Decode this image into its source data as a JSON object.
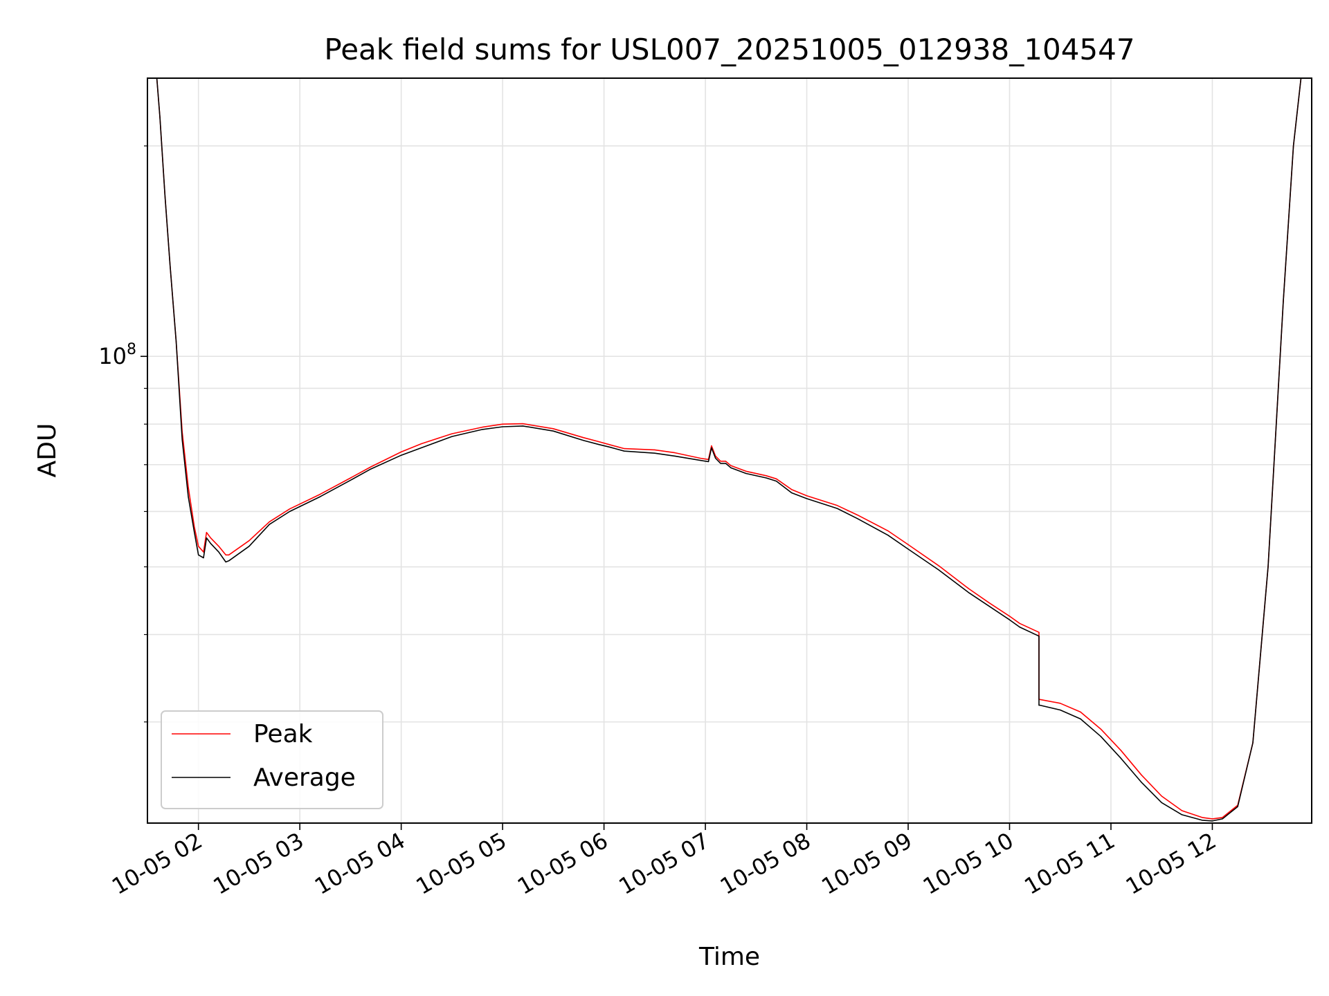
{
  "chart_data": {
    "type": "line",
    "title": "Peak field sums for USL007_20251005_012938_104547",
    "xlabel": "Time",
    "ylabel": "ADU",
    "yscale": "log",
    "grid": true,
    "legend_position": "lower-left",
    "x_unit": "hours since 2025-10-05 00:00",
    "xlim": [
      1.497,
      12.98
    ],
    "ylim": [
      21500000.0,
      250000000.0
    ],
    "x_ticks": [
      {
        "value": 2,
        "label": "10-05 02"
      },
      {
        "value": 3,
        "label": "10-05 03"
      },
      {
        "value": 4,
        "label": "10-05 04"
      },
      {
        "value": 5,
        "label": "10-05 05"
      },
      {
        "value": 6,
        "label": "10-05 06"
      },
      {
        "value": 7,
        "label": "10-05 07"
      },
      {
        "value": 8,
        "label": "10-05 08"
      },
      {
        "value": 9,
        "label": "10-05 09"
      },
      {
        "value": 10,
        "label": "10-05 10"
      },
      {
        "value": 11,
        "label": "10-05 11"
      },
      {
        "value": 12,
        "label": "10-05 12"
      }
    ],
    "y_major_tick": {
      "value": 100000000,
      "base": "10",
      "exponent": "8"
    },
    "y_minor_ticks": [
      30000000,
      40000000,
      50000000,
      60000000,
      70000000,
      80000000,
      90000000,
      200000000
    ],
    "series": [
      {
        "name": "Peak",
        "color": "#ff0000",
        "x": [
          1.58,
          1.62,
          1.67,
          1.72,
          1.78,
          1.84,
          1.9,
          1.96,
          2.0,
          2.05,
          2.08,
          2.12,
          2.2,
          2.27,
          2.3,
          2.5,
          2.7,
          2.9,
          3.2,
          3.5,
          3.7,
          4.0,
          4.2,
          4.5,
          4.8,
          5.0,
          5.2,
          5.5,
          5.8,
          5.95,
          6.05,
          6.2,
          6.5,
          6.7,
          6.95,
          7.03,
          7.06,
          7.1,
          7.15,
          7.2,
          7.25,
          7.4,
          7.6,
          7.7,
          7.85,
          8.0,
          8.3,
          8.5,
          8.8,
          9.0,
          9.3,
          9.6,
          9.8,
          10.0,
          10.1,
          10.29,
          10.29,
          10.3,
          10.5,
          10.7,
          10.9,
          11.1,
          11.3,
          11.5,
          11.7,
          11.9,
          12.0,
          12.1,
          12.25,
          12.4,
          12.55,
          12.7,
          12.8,
          12.9
        ],
        "y": [
          260000000,
          220000000,
          170000000,
          135000000,
          105000000,
          78000000,
          65000000,
          57000000,
          53500000,
          52500000,
          56000000,
          55000000,
          53500000,
          52000000,
          52000000,
          54500000,
          58000000,
          60500000,
          63500000,
          67000000,
          69500000,
          73000000,
          75000000,
          77500000,
          79200000,
          80000000,
          80100000,
          78800000,
          76500000,
          75500000,
          74800000,
          73800000,
          73500000,
          72800000,
          71500000,
          71200000,
          74500000,
          72000000,
          70800000,
          70800000,
          69800000,
          68500000,
          67500000,
          66800000,
          64500000,
          63200000,
          61200000,
          59300000,
          56300000,
          53800000,
          50200000,
          46500000,
          44400000,
          42500000,
          41500000,
          40300000,
          32300000,
          32300000,
          31900000,
          31000000,
          29300000,
          27300000,
          25200000,
          23500000,
          22400000,
          21900000,
          21800000,
          21900000,
          22800000,
          28000000,
          50000000,
          120000000,
          200000000,
          270000000
        ]
      },
      {
        "name": "Average",
        "color": "#000000",
        "x": [
          1.58,
          1.62,
          1.67,
          1.72,
          1.78,
          1.84,
          1.9,
          1.96,
          2.0,
          2.05,
          2.08,
          2.12,
          2.2,
          2.27,
          2.3,
          2.5,
          2.7,
          2.9,
          3.2,
          3.5,
          3.7,
          4.0,
          4.2,
          4.5,
          4.8,
          5.0,
          5.2,
          5.5,
          5.8,
          5.95,
          6.05,
          6.2,
          6.5,
          6.7,
          6.95,
          7.03,
          7.06,
          7.1,
          7.15,
          7.2,
          7.25,
          7.4,
          7.6,
          7.7,
          7.85,
          8.0,
          8.3,
          8.5,
          8.8,
          9.0,
          9.3,
          9.6,
          9.8,
          10.0,
          10.1,
          10.29,
          10.29,
          10.3,
          10.5,
          10.7,
          10.9,
          11.1,
          11.3,
          11.5,
          11.7,
          11.9,
          12.0,
          12.1,
          12.25,
          12.4,
          12.55,
          12.7,
          12.8,
          12.9
        ],
        "y": [
          260000000,
          220000000,
          170000000,
          135000000,
          105000000,
          76000000,
          63000000,
          56000000,
          52000000,
          51500000,
          55000000,
          54000000,
          52500000,
          50800000,
          51000000,
          53500000,
          57500000,
          60000000,
          63000000,
          66500000,
          69000000,
          72200000,
          74000000,
          76800000,
          78600000,
          79300000,
          79500000,
          78200000,
          75800000,
          74800000,
          74200000,
          73200000,
          72700000,
          72000000,
          71000000,
          70700000,
          74000000,
          71500000,
          70300000,
          70300000,
          69300000,
          68000000,
          67000000,
          66300000,
          63800000,
          62600000,
          60600000,
          58600000,
          55500000,
          53000000,
          49500000,
          45900000,
          43900000,
          42000000,
          41000000,
          39800000,
          31700000,
          31700000,
          31200000,
          30300000,
          28600000,
          26600000,
          24600000,
          23000000,
          22100000,
          21700000,
          21650000,
          21800000,
          22700000,
          28000000,
          50000000,
          120000000,
          200000000,
          270000000
        ]
      }
    ]
  }
}
